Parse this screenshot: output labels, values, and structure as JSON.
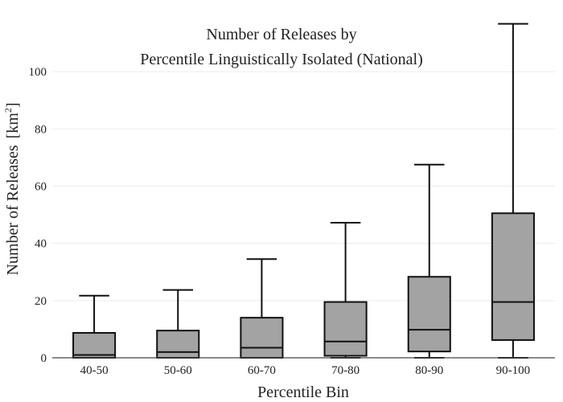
{
  "chart_data": {
    "type": "box",
    "title_lines": [
      "Number of Releases by",
      "Percentile Linguistically Isolated (National)"
    ],
    "xlabel": "Percentile Bin",
    "ylabel": "Number of Releases",
    "ylabel_unit_base": "[km",
    "ylabel_unit_sup": "2",
    "ylabel_unit_close": "]",
    "ylim": [
      0,
      118
    ],
    "yticks": [
      0,
      20,
      40,
      60,
      80,
      100
    ],
    "grid": true,
    "categories": [
      "40-50",
      "50-60",
      "60-70",
      "70-80",
      "80-90",
      "90-100"
    ],
    "boxes": [
      {
        "min": 0,
        "q1": 0,
        "median": 1,
        "q3": 8.7,
        "max": 21.7
      },
      {
        "min": 0,
        "q1": 0,
        "median": 2,
        "q3": 9.5,
        "max": 23.7
      },
      {
        "min": 0,
        "q1": 0,
        "median": 3.5,
        "q3": 14,
        "max": 34.5
      },
      {
        "min": 0,
        "q1": 0.7,
        "median": 5.7,
        "q3": 19.5,
        "max": 47.2
      },
      {
        "min": 0,
        "q1": 2.2,
        "median": 9.8,
        "q3": 28.3,
        "max": 67.5
      },
      {
        "min": 0,
        "q1": 6.2,
        "median": 19.5,
        "q3": 50.5,
        "max": 116.7
      }
    ]
  }
}
